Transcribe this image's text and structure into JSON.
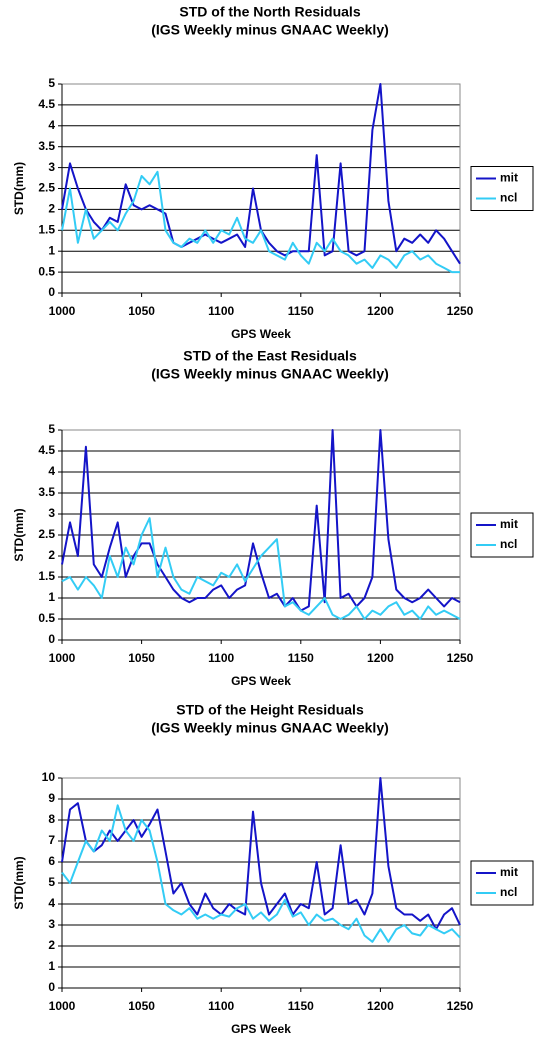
{
  "chart_data": [
    {
      "type": "line",
      "title": "STD of the North Residuals",
      "subtitle": "(IGS Weekly minus GNAAC Weekly)",
      "x_label": "GPS Week",
      "y_label": "STD(mm)",
      "x": [
        1000,
        1005,
        1010,
        1015,
        1020,
        1025,
        1030,
        1035,
        1040,
        1045,
        1050,
        1055,
        1060,
        1065,
        1070,
        1075,
        1080,
        1085,
        1090,
        1095,
        1100,
        1105,
        1110,
        1115,
        1120,
        1125,
        1130,
        1135,
        1140,
        1145,
        1150,
        1155,
        1160,
        1165,
        1170,
        1175,
        1180,
        1185,
        1190,
        1195,
        1200,
        1205,
        1210,
        1215,
        1220,
        1225,
        1230,
        1235,
        1240,
        1245,
        1250
      ],
      "series": [
        {
          "name": "mit",
          "color": "#1414c8",
          "values": [
            2.0,
            3.1,
            2.5,
            2.0,
            1.7,
            1.5,
            1.8,
            1.7,
            2.6,
            2.1,
            2.0,
            2.1,
            2.0,
            1.9,
            1.2,
            1.1,
            1.2,
            1.3,
            1.4,
            1.3,
            1.2,
            1.3,
            1.4,
            1.1,
            2.5,
            1.5,
            1.2,
            1.0,
            0.9,
            1.0,
            1.0,
            1.0,
            3.3,
            0.9,
            1.0,
            3.1,
            1.0,
            0.9,
            1.0,
            3.9,
            5.0,
            2.2,
            1.0,
            1.3,
            1.2,
            1.4,
            1.2,
            1.5,
            1.3,
            1.0,
            0.7
          ]
        },
        {
          "name": "ncl",
          "color": "#33ccf5",
          "values": [
            1.5,
            2.5,
            1.2,
            2.0,
            1.3,
            1.5,
            1.7,
            1.5,
            1.9,
            2.2,
            2.8,
            2.6,
            2.9,
            1.5,
            1.2,
            1.1,
            1.3,
            1.2,
            1.5,
            1.2,
            1.5,
            1.4,
            1.8,
            1.3,
            1.2,
            1.5,
            1.0,
            0.9,
            0.8,
            1.2,
            0.9,
            0.7,
            1.2,
            1.0,
            1.3,
            1.0,
            0.9,
            0.7,
            0.8,
            0.6,
            0.9,
            0.8,
            0.6,
            0.9,
            1.0,
            0.8,
            0.9,
            0.7,
            0.6,
            0.5,
            0.5
          ]
        }
      ],
      "xlim": [
        1000,
        1250
      ],
      "xticks": [
        1000,
        1050,
        1100,
        1150,
        1200,
        1250
      ],
      "ylim": [
        0,
        5
      ],
      "yticks": [
        0,
        0.5,
        1,
        1.5,
        2,
        2.5,
        3,
        3.5,
        4,
        4.5,
        5
      ],
      "grid": true,
      "legend": "right"
    },
    {
      "type": "line",
      "title": "STD of the East Residuals",
      "subtitle": "(IGS Weekly minus GNAAC Weekly)",
      "x_label": "GPS Week",
      "y_label": "STD(mm)",
      "x": [
        1000,
        1005,
        1010,
        1015,
        1020,
        1025,
        1030,
        1035,
        1040,
        1045,
        1050,
        1055,
        1060,
        1065,
        1070,
        1075,
        1080,
        1085,
        1090,
        1095,
        1100,
        1105,
        1110,
        1115,
        1120,
        1125,
        1130,
        1135,
        1140,
        1145,
        1150,
        1155,
        1160,
        1165,
        1170,
        1175,
        1180,
        1185,
        1190,
        1195,
        1200,
        1205,
        1210,
        1215,
        1220,
        1225,
        1230,
        1235,
        1240,
        1245,
        1250
      ],
      "series": [
        {
          "name": "mit",
          "color": "#1414c8",
          "values": [
            1.8,
            2.8,
            2.0,
            4.6,
            1.8,
            1.5,
            2.2,
            2.8,
            1.5,
            2.0,
            2.3,
            2.3,
            1.8,
            1.5,
            1.2,
            1.0,
            0.9,
            1.0,
            1.0,
            1.2,
            1.3,
            1.0,
            1.2,
            1.3,
            2.3,
            1.6,
            1.0,
            1.1,
            0.8,
            1.0,
            0.7,
            0.8,
            3.2,
            0.9,
            5.0,
            1.0,
            1.1,
            0.8,
            1.0,
            1.5,
            5.0,
            2.4,
            1.2,
            1.0,
            0.9,
            1.0,
            1.2,
            1.0,
            0.8,
            1.0,
            0.9
          ]
        },
        {
          "name": "ncl",
          "color": "#33ccf5",
          "values": [
            1.4,
            1.5,
            1.2,
            1.5,
            1.3,
            1.0,
            2.0,
            1.5,
            2.2,
            1.8,
            2.5,
            2.9,
            1.5,
            2.2,
            1.5,
            1.2,
            1.1,
            1.5,
            1.4,
            1.3,
            1.6,
            1.5,
            1.8,
            1.4,
            1.7,
            2.0,
            2.2,
            2.4,
            0.8,
            0.9,
            0.7,
            0.6,
            0.8,
            1.0,
            0.6,
            0.5,
            0.6,
            0.8,
            0.5,
            0.7,
            0.6,
            0.8,
            0.9,
            0.6,
            0.7,
            0.5,
            0.8,
            0.6,
            0.7,
            0.6,
            0.5
          ]
        }
      ],
      "xlim": [
        1000,
        1250
      ],
      "xticks": [
        1000,
        1050,
        1100,
        1150,
        1200,
        1250
      ],
      "ylim": [
        0,
        5
      ],
      "yticks": [
        0,
        0.5,
        1,
        1.5,
        2,
        2.5,
        3,
        3.5,
        4,
        4.5,
        5
      ],
      "grid": true,
      "legend": "right"
    },
    {
      "type": "line",
      "title": "STD of the Height Residuals",
      "subtitle": "(IGS Weekly minus GNAAC Weekly)",
      "x_label": "GPS Week",
      "y_label": "STD(mm)",
      "x": [
        1000,
        1005,
        1010,
        1015,
        1020,
        1025,
        1030,
        1035,
        1040,
        1045,
        1050,
        1055,
        1060,
        1065,
        1070,
        1075,
        1080,
        1085,
        1090,
        1095,
        1100,
        1105,
        1110,
        1115,
        1120,
        1125,
        1130,
        1135,
        1140,
        1145,
        1150,
        1155,
        1160,
        1165,
        1170,
        1175,
        1180,
        1185,
        1190,
        1195,
        1200,
        1205,
        1210,
        1215,
        1220,
        1225,
        1230,
        1235,
        1240,
        1245,
        1250
      ],
      "series": [
        {
          "name": "mit",
          "color": "#1414c8",
          "values": [
            6.0,
            8.5,
            8.8,
            7.0,
            6.5,
            6.8,
            7.5,
            7.0,
            7.5,
            8.0,
            7.2,
            7.8,
            8.5,
            6.5,
            4.5,
            5.0,
            4.0,
            3.5,
            4.5,
            3.8,
            3.5,
            4.0,
            3.7,
            3.5,
            8.4,
            5.0,
            3.5,
            4.0,
            4.5,
            3.5,
            4.0,
            3.8,
            6.0,
            3.5,
            3.8,
            6.8,
            4.0,
            4.2,
            3.5,
            4.5,
            10.0,
            5.8,
            3.8,
            3.5,
            3.5,
            3.2,
            3.5,
            2.8,
            3.5,
            3.8,
            3.0
          ]
        },
        {
          "name": "ncl",
          "color": "#33ccf5",
          "values": [
            5.5,
            5.0,
            6.0,
            7.0,
            6.5,
            7.5,
            7.0,
            8.7,
            7.5,
            7.0,
            8.0,
            7.5,
            6.0,
            4.0,
            3.7,
            3.5,
            3.8,
            3.3,
            3.5,
            3.3,
            3.5,
            3.4,
            3.8,
            4.0,
            3.3,
            3.6,
            3.2,
            3.5,
            4.2,
            3.4,
            3.6,
            3.0,
            3.5,
            3.2,
            3.3,
            3.0,
            2.8,
            3.3,
            2.5,
            2.2,
            2.8,
            2.2,
            2.8,
            3.0,
            2.6,
            2.5,
            3.0,
            2.8,
            2.6,
            2.8,
            2.4
          ]
        }
      ],
      "xlim": [
        1000,
        1250
      ],
      "xticks": [
        1000,
        1050,
        1100,
        1150,
        1200,
        1250
      ],
      "ylim": [
        0,
        10
      ],
      "yticks": [
        0,
        1,
        2,
        3,
        4,
        5,
        6,
        7,
        8,
        9,
        10
      ],
      "grid": true,
      "legend": "right"
    }
  ]
}
